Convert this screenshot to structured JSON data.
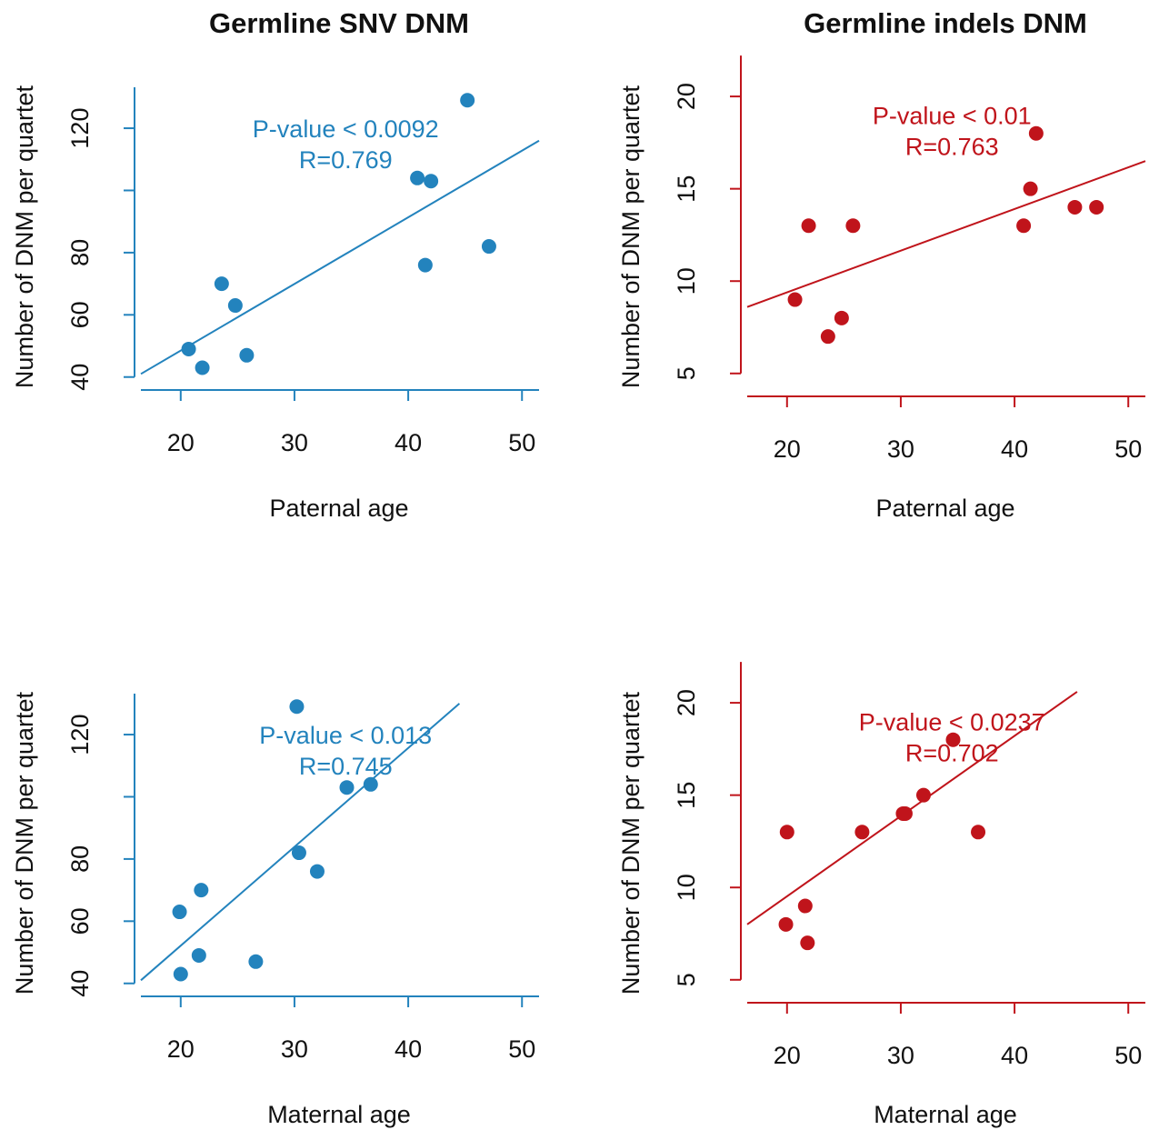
{
  "colors": {
    "blue": "#2383bd",
    "red": "#c0141b"
  },
  "titles": {
    "left": "Germline SNV DNM",
    "right": "Germline indels DNM"
  },
  "chart_data": [
    {
      "type": "scatter",
      "color": "#2383bd",
      "xlabel": "Paternal age",
      "ylabel": "Number of DNM per quartet",
      "xlim": [
        16.5,
        51.5
      ],
      "ylim": [
        37,
        132
      ],
      "xticks": [
        20,
        30,
        40,
        50
      ],
      "yticks": [
        40,
        60,
        80,
        100,
        120
      ],
      "yticklabels": [
        "40",
        "60",
        "80",
        "",
        "120"
      ],
      "points": [
        [
          20.7,
          49
        ],
        [
          21.9,
          43
        ],
        [
          23.6,
          70
        ],
        [
          24.8,
          63
        ],
        [
          25.8,
          47
        ],
        [
          40.8,
          104
        ],
        [
          42.0,
          103
        ],
        [
          41.5,
          76
        ],
        [
          45.2,
          129
        ],
        [
          47.1,
          82
        ]
      ],
      "fit": {
        "x": [
          16.5,
          51.5
        ],
        "y": [
          41,
          116
        ]
      },
      "annotation": {
        "pvalue": "P-value < 0.0092",
        "r": "R=0.769"
      },
      "annotation_pos": [
        34.5,
        120
      ]
    },
    {
      "type": "scatter",
      "color": "#c0141b",
      "xlabel": "Paternal age",
      "ylabel": "Number of DNM per quartet",
      "xlim": [
        16.5,
        51.5
      ],
      "ylim": [
        4.3,
        20.3
      ],
      "xticks": [
        20,
        30,
        40,
        50
      ],
      "yticks": [
        5,
        10,
        15,
        20
      ],
      "yticklabels": [
        "5",
        "10",
        "15",
        "20"
      ],
      "points": [
        [
          20.7,
          9
        ],
        [
          21.9,
          13
        ],
        [
          23.6,
          7
        ],
        [
          24.8,
          8
        ],
        [
          25.8,
          13
        ],
        [
          40.8,
          13
        ],
        [
          41.4,
          15
        ],
        [
          41.9,
          18
        ],
        [
          45.3,
          14
        ],
        [
          47.2,
          14
        ]
      ],
      "fit": {
        "x": [
          16.5,
          51.5
        ],
        "y": [
          8.6,
          16.5
        ]
      },
      "annotation": {
        "pvalue": "P-value < 0.01",
        "r": "R=0.763"
      },
      "annotation_pos": [
        34.5,
        19
      ]
    },
    {
      "type": "scatter",
      "color": "#2383bd",
      "xlabel": "Maternal age",
      "ylabel": "Number of DNM per quartet",
      "xlim": [
        16.5,
        51.5
      ],
      "ylim": [
        37,
        132
      ],
      "xticks": [
        20,
        30,
        40,
        50
      ],
      "yticks": [
        40,
        60,
        80,
        100,
        120
      ],
      "yticklabels": [
        "40",
        "60",
        "80",
        "",
        "120"
      ],
      "points": [
        [
          19.9,
          63
        ],
        [
          20.0,
          43
        ],
        [
          21.6,
          49
        ],
        [
          21.8,
          70
        ],
        [
          26.6,
          47
        ],
        [
          30.2,
          129
        ],
        [
          30.4,
          82
        ],
        [
          32.0,
          76
        ],
        [
          34.6,
          103
        ],
        [
          36.7,
          104
        ]
      ],
      "fit": {
        "x": [
          16.5,
          44.5
        ],
        "y": [
          41,
          130
        ]
      },
      "annotation": {
        "pvalue": "P-value < 0.013",
        "r": "R=0.745"
      },
      "annotation_pos": [
        34.5,
        120
      ]
    },
    {
      "type": "scatter",
      "color": "#c0141b",
      "xlabel": "Maternal age",
      "ylabel": "Number of DNM per quartet",
      "xlim": [
        16.5,
        51.5
      ],
      "ylim": [
        4.3,
        20.3
      ],
      "xticks": [
        20,
        30,
        40,
        50
      ],
      "yticks": [
        5,
        10,
        15,
        20
      ],
      "yticklabels": [
        "5",
        "10",
        "15",
        "20"
      ],
      "points": [
        [
          19.9,
          8
        ],
        [
          20.0,
          13
        ],
        [
          21.6,
          9
        ],
        [
          21.8,
          7
        ],
        [
          26.6,
          13
        ],
        [
          30.2,
          14
        ],
        [
          30.4,
          14
        ],
        [
          32.0,
          15
        ],
        [
          34.6,
          18
        ],
        [
          36.8,
          13
        ]
      ],
      "fit": {
        "x": [
          16.5,
          45.5
        ],
        "y": [
          8.0,
          20.6
        ]
      },
      "annotation": {
        "pvalue": "P-value < 0.0237",
        "r": "R=0.702"
      },
      "annotation_pos": [
        34.5,
        19
      ]
    }
  ]
}
